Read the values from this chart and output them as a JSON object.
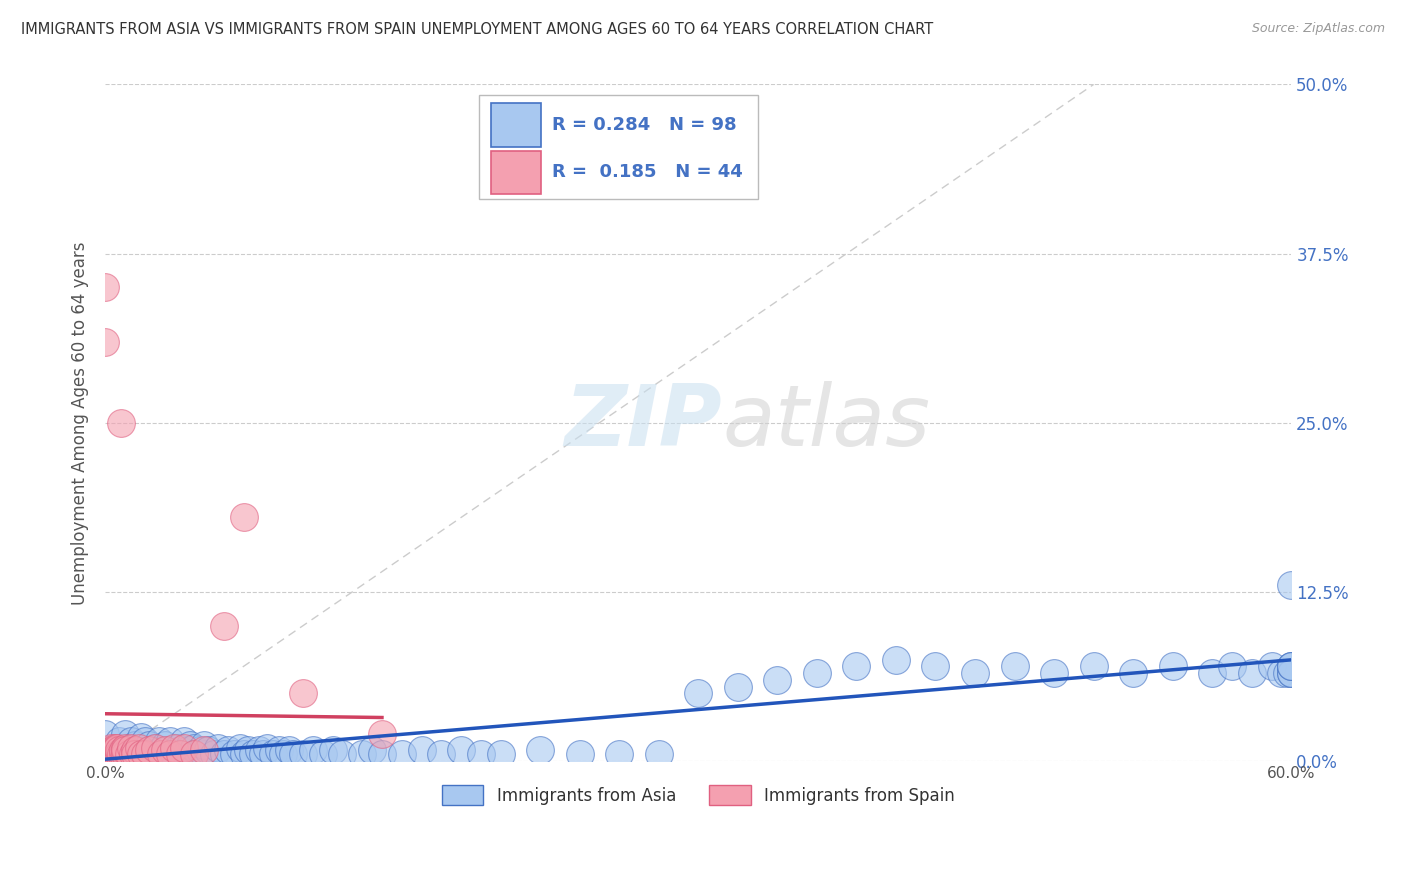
{
  "title": "IMMIGRANTS FROM ASIA VS IMMIGRANTS FROM SPAIN UNEMPLOYMENT AMONG AGES 60 TO 64 YEARS CORRELATION CHART",
  "source": "Source: ZipAtlas.com",
  "ylabel": "Unemployment Among Ages 60 to 64 years",
  "xlim": [
    0.0,
    0.6
  ],
  "ylim": [
    0.0,
    0.5
  ],
  "xticks": [
    0.0,
    0.1,
    0.2,
    0.3,
    0.4,
    0.5,
    0.6
  ],
  "yticks": [
    0.0,
    0.125,
    0.25,
    0.375,
    0.5
  ],
  "ytick_labels_right": [
    "0.0%",
    "12.5%",
    "25.0%",
    "37.5%",
    "50.0%"
  ],
  "xtick_labels": [
    "0.0%",
    "",
    "",
    "",
    "",
    "",
    "60.0%"
  ],
  "asia_color": "#a8c8f0",
  "spain_color": "#f4a0b0",
  "asia_edge_color": "#4472c4",
  "spain_edge_color": "#e06080",
  "asia_line_color": "#2255bb",
  "spain_line_color": "#d04060",
  "watermark_zip": "ZIP",
  "watermark_atlas": "atlas",
  "R_asia": 0.284,
  "N_asia": 98,
  "R_spain": 0.185,
  "N_spain": 44,
  "asia_x": [
    0.0,
    0.005,
    0.007,
    0.008,
    0.01,
    0.01,
    0.012,
    0.013,
    0.015,
    0.015,
    0.017,
    0.018,
    0.02,
    0.02,
    0.022,
    0.022,
    0.023,
    0.025,
    0.027,
    0.027,
    0.028,
    0.03,
    0.03,
    0.032,
    0.033,
    0.035,
    0.037,
    0.038,
    0.04,
    0.04,
    0.042,
    0.043,
    0.045,
    0.045,
    0.048,
    0.05,
    0.05,
    0.052,
    0.055,
    0.057,
    0.06,
    0.062,
    0.065,
    0.068,
    0.07,
    0.072,
    0.075,
    0.078,
    0.08,
    0.082,
    0.085,
    0.088,
    0.09,
    0.093,
    0.095,
    0.1,
    0.105,
    0.11,
    0.115,
    0.12,
    0.13,
    0.135,
    0.14,
    0.15,
    0.16,
    0.17,
    0.18,
    0.19,
    0.2,
    0.22,
    0.24,
    0.26,
    0.28,
    0.3,
    0.32,
    0.34,
    0.36,
    0.38,
    0.4,
    0.42,
    0.44,
    0.46,
    0.48,
    0.5,
    0.52,
    0.54,
    0.56,
    0.57,
    0.58,
    0.59,
    0.595,
    0.598,
    0.6,
    0.6,
    0.6,
    0.6,
    0.6,
    0.6
  ],
  "asia_y": [
    0.02,
    0.01,
    0.015,
    0.008,
    0.005,
    0.02,
    0.01,
    0.015,
    0.005,
    0.012,
    0.008,
    0.018,
    0.005,
    0.015,
    0.008,
    0.012,
    0.005,
    0.01,
    0.005,
    0.015,
    0.008,
    0.005,
    0.012,
    0.008,
    0.015,
    0.005,
    0.01,
    0.008,
    0.005,
    0.015,
    0.008,
    0.012,
    0.005,
    0.01,
    0.008,
    0.005,
    0.012,
    0.008,
    0.005,
    0.01,
    0.005,
    0.008,
    0.005,
    0.01,
    0.005,
    0.008,
    0.005,
    0.008,
    0.005,
    0.01,
    0.005,
    0.008,
    0.005,
    0.008,
    0.005,
    0.005,
    0.008,
    0.005,
    0.008,
    0.005,
    0.005,
    0.008,
    0.005,
    0.005,
    0.008,
    0.005,
    0.008,
    0.005,
    0.005,
    0.008,
    0.005,
    0.005,
    0.005,
    0.05,
    0.055,
    0.06,
    0.065,
    0.07,
    0.075,
    0.07,
    0.065,
    0.07,
    0.065,
    0.07,
    0.065,
    0.07,
    0.065,
    0.07,
    0.065,
    0.07,
    0.065,
    0.065,
    0.065,
    0.07,
    0.065,
    0.07,
    0.13,
    0.07
  ],
  "spain_x": [
    0.0,
    0.0,
    0.0,
    0.002,
    0.003,
    0.003,
    0.004,
    0.004,
    0.005,
    0.005,
    0.005,
    0.006,
    0.006,
    0.007,
    0.007,
    0.008,
    0.008,
    0.009,
    0.009,
    0.01,
    0.01,
    0.01,
    0.012,
    0.013,
    0.014,
    0.015,
    0.015,
    0.017,
    0.018,
    0.02,
    0.022,
    0.025,
    0.028,
    0.03,
    0.033,
    0.035,
    0.038,
    0.04,
    0.045,
    0.05,
    0.06,
    0.07,
    0.1,
    0.14
  ],
  "spain_y": [
    0.005,
    0.35,
    0.31,
    0.008,
    0.005,
    0.01,
    0.005,
    0.008,
    0.005,
    0.01,
    0.008,
    0.005,
    0.01,
    0.005,
    0.008,
    0.005,
    0.25,
    0.005,
    0.008,
    0.005,
    0.01,
    0.008,
    0.005,
    0.01,
    0.005,
    0.008,
    0.005,
    0.01,
    0.005,
    0.005,
    0.008,
    0.01,
    0.005,
    0.008,
    0.005,
    0.01,
    0.005,
    0.01,
    0.005,
    0.008,
    0.1,
    0.18,
    0.05,
    0.02
  ]
}
